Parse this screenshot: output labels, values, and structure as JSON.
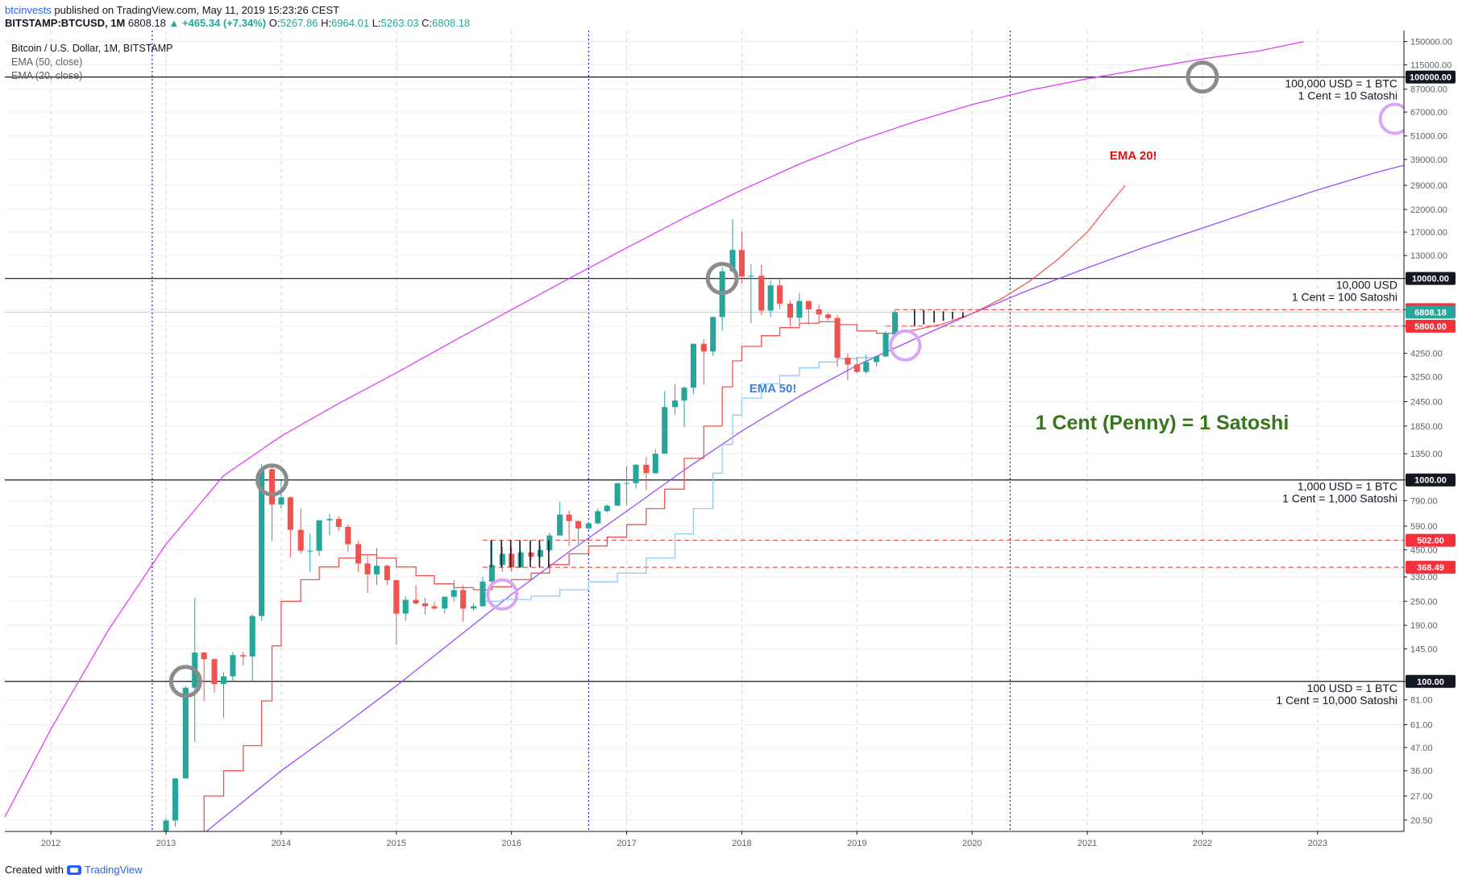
{
  "header": {
    "author": "btcinvests",
    "published": " published on TradingView.com, May 11, 2019 15:23:26 CEST"
  },
  "ohlc": {
    "symbol": "BITSTAMP:BTCUSD, 1M",
    "price": "6808.18",
    "change": "▲ +465.34 (+7.34%)",
    "o_label": "O:",
    "o": "5267.86",
    "h_label": "H:",
    "h": "6964.01",
    "l_label": "L:",
    "l": "5263.03",
    "c_label": "C:",
    "c": "6808.18"
  },
  "legend": {
    "title": "Bitcoin / U.S. Dollar, 1M, BITSTAMP",
    "ema50": "EMA (50, close)",
    "ema20": "EMA (20, close)"
  },
  "footer": {
    "created": "Created with",
    "brand": "TradingView"
  },
  "colors": {
    "up": "#26a69a",
    "down": "#ef5350",
    "ema20": "#ef5350",
    "ema50": "#90caf9",
    "upper_curve": "#e040fb",
    "lower_curve": "#9c4dff",
    "vline": "#1e22d0",
    "annotation_green": "#38761d",
    "ema20_label": "#e01010",
    "ema50_label": "#3d7fd9"
  },
  "chart_data": {
    "type": "candlestick",
    "title": "Bitcoin / U.S. Dollar, 1M, BITSTAMP",
    "scale": "log",
    "ylim": [
      18,
      170000
    ],
    "xlim": [
      2011.6,
      2023.75
    ],
    "x_ticks": [
      "2012",
      "2013",
      "2014",
      "2015",
      "2016",
      "2017",
      "2018",
      "2019",
      "2020",
      "2021",
      "2022",
      "2023"
    ],
    "y_ticks": [
      20.5,
      27,
      36,
      47,
      61,
      81,
      100,
      145,
      190,
      250,
      330,
      450,
      590,
      790,
      1000,
      1350,
      1850,
      2450,
      3250,
      4250,
      5800,
      7000,
      10000,
      13000,
      17000,
      22000,
      29000,
      39000,
      51000,
      67000,
      87000,
      100000,
      115000,
      150000
    ],
    "y_tick_labels": [
      "20.50",
      "27.00",
      "36.00",
      "47.00",
      "61.00",
      "81.00",
      "100.00",
      "145.00",
      "190.00",
      "250.00",
      "330.00",
      "450.00",
      "590.00",
      "790.00",
      "1000.00",
      "1350.00",
      "1850.00",
      "2450.00",
      "3250.00",
      "4250.00",
      "5800.00",
      "7000.00",
      "10000.00",
      "13000.00",
      "17000.00",
      "22000.00",
      "29000.00",
      "39000.00",
      "51000.00",
      "67000.00",
      "87000.00",
      "100000.00",
      "115000.00",
      "150000.00"
    ],
    "candles": [
      {
        "d": 2012.92,
        "o": 13.5,
        "h": 14,
        "l": 12.5,
        "c": 13.5
      },
      {
        "d": 2013.0,
        "o": 13.5,
        "h": 21,
        "l": 13,
        "c": 20.4
      },
      {
        "d": 2013.08,
        "o": 20.4,
        "h": 33,
        "l": 19,
        "c": 33
      },
      {
        "d": 2013.17,
        "o": 33,
        "h": 95,
        "l": 33,
        "c": 93
      },
      {
        "d": 2013.25,
        "o": 93,
        "h": 260,
        "l": 50,
        "c": 139
      },
      {
        "d": 2013.33,
        "o": 139,
        "h": 140,
        "l": 80,
        "c": 129
      },
      {
        "d": 2013.42,
        "o": 129,
        "h": 130,
        "l": 88,
        "c": 97
      },
      {
        "d": 2013.5,
        "o": 97,
        "h": 111,
        "l": 66,
        "c": 106
      },
      {
        "d": 2013.58,
        "o": 106,
        "h": 140,
        "l": 100,
        "c": 135
      },
      {
        "d": 2013.67,
        "o": 135,
        "h": 140,
        "l": 120,
        "c": 133
      },
      {
        "d": 2013.75,
        "o": 133,
        "h": 215,
        "l": 100,
        "c": 211
      },
      {
        "d": 2013.83,
        "o": 211,
        "h": 1200,
        "l": 200,
        "c": 1130
      },
      {
        "d": 2013.92,
        "o": 1130,
        "h": 1165,
        "l": 500,
        "c": 755
      },
      {
        "d": 2014.0,
        "o": 755,
        "h": 1000,
        "l": 720,
        "c": 820
      },
      {
        "d": 2014.08,
        "o": 820,
        "h": 830,
        "l": 410,
        "c": 565
      },
      {
        "d": 2014.17,
        "o": 565,
        "h": 720,
        "l": 430,
        "c": 445
      },
      {
        "d": 2014.25,
        "o": 445,
        "h": 540,
        "l": 350,
        "c": 445
      },
      {
        "d": 2014.33,
        "o": 445,
        "h": 635,
        "l": 420,
        "c": 630
      },
      {
        "d": 2014.42,
        "o": 630,
        "h": 680,
        "l": 530,
        "c": 640
      },
      {
        "d": 2014.5,
        "o": 640,
        "h": 660,
        "l": 560,
        "c": 585
      },
      {
        "d": 2014.58,
        "o": 585,
        "h": 600,
        "l": 440,
        "c": 480
      },
      {
        "d": 2014.67,
        "o": 480,
        "h": 500,
        "l": 350,
        "c": 385
      },
      {
        "d": 2014.75,
        "o": 385,
        "h": 420,
        "l": 275,
        "c": 340
      },
      {
        "d": 2014.83,
        "o": 340,
        "h": 460,
        "l": 300,
        "c": 375
      },
      {
        "d": 2014.92,
        "o": 375,
        "h": 380,
        "l": 300,
        "c": 318
      },
      {
        "d": 2015.0,
        "o": 318,
        "h": 320,
        "l": 152,
        "c": 217
      },
      {
        "d": 2015.08,
        "o": 217,
        "h": 265,
        "l": 200,
        "c": 254
      },
      {
        "d": 2015.17,
        "o": 254,
        "h": 300,
        "l": 240,
        "c": 244
      },
      {
        "d": 2015.25,
        "o": 244,
        "h": 260,
        "l": 215,
        "c": 236
      },
      {
        "d": 2015.33,
        "o": 236,
        "h": 248,
        "l": 228,
        "c": 230
      },
      {
        "d": 2015.42,
        "o": 230,
        "h": 265,
        "l": 218,
        "c": 263
      },
      {
        "d": 2015.5,
        "o": 263,
        "h": 318,
        "l": 250,
        "c": 284
      },
      {
        "d": 2015.58,
        "o": 284,
        "h": 300,
        "l": 198,
        "c": 230
      },
      {
        "d": 2015.67,
        "o": 230,
        "h": 245,
        "l": 225,
        "c": 236
      },
      {
        "d": 2015.75,
        "o": 236,
        "h": 330,
        "l": 235,
        "c": 313
      },
      {
        "d": 2015.83,
        "o": 313,
        "h": 502,
        "l": 305,
        "c": 378
      },
      {
        "d": 2015.92,
        "o": 378,
        "h": 465,
        "l": 350,
        "c": 430
      },
      {
        "d": 2016.0,
        "o": 430,
        "h": 460,
        "l": 350,
        "c": 368
      },
      {
        "d": 2016.08,
        "o": 368,
        "h": 445,
        "l": 365,
        "c": 437
      },
      {
        "d": 2016.17,
        "o": 437,
        "h": 440,
        "l": 400,
        "c": 416
      },
      {
        "d": 2016.25,
        "o": 416,
        "h": 470,
        "l": 412,
        "c": 448
      },
      {
        "d": 2016.33,
        "o": 448,
        "h": 548,
        "l": 440,
        "c": 530
      },
      {
        "d": 2016.42,
        "o": 530,
        "h": 780,
        "l": 530,
        "c": 673
      },
      {
        "d": 2016.5,
        "o": 673,
        "h": 705,
        "l": 470,
        "c": 625
      },
      {
        "d": 2016.58,
        "o": 625,
        "h": 630,
        "l": 480,
        "c": 575
      },
      {
        "d": 2016.67,
        "o": 575,
        "h": 615,
        "l": 565,
        "c": 609
      },
      {
        "d": 2016.75,
        "o": 609,
        "h": 720,
        "l": 600,
        "c": 700
      },
      {
        "d": 2016.83,
        "o": 700,
        "h": 755,
        "l": 690,
        "c": 745
      },
      {
        "d": 2016.92,
        "o": 745,
        "h": 970,
        "l": 745,
        "c": 963
      },
      {
        "d": 2017.0,
        "o": 963,
        "h": 1170,
        "l": 750,
        "c": 965
      },
      {
        "d": 2017.08,
        "o": 965,
        "h": 1200,
        "l": 910,
        "c": 1190
      },
      {
        "d": 2017.17,
        "o": 1190,
        "h": 1300,
        "l": 890,
        "c": 1080
      },
      {
        "d": 2017.25,
        "o": 1080,
        "h": 1420,
        "l": 1075,
        "c": 1350
      },
      {
        "d": 2017.33,
        "o": 1350,
        "h": 2760,
        "l": 1345,
        "c": 2300
      },
      {
        "d": 2017.42,
        "o": 2300,
        "h": 2990,
        "l": 2120,
        "c": 2480
      },
      {
        "d": 2017.5,
        "o": 2480,
        "h": 2920,
        "l": 1830,
        "c": 2870
      },
      {
        "d": 2017.58,
        "o": 2870,
        "h": 4750,
        "l": 2670,
        "c": 4740
      },
      {
        "d": 2017.67,
        "o": 4740,
        "h": 4990,
        "l": 2970,
        "c": 4340
      },
      {
        "d": 2017.75,
        "o": 4340,
        "h": 6470,
        "l": 4130,
        "c": 6440
      },
      {
        "d": 2017.83,
        "o": 6440,
        "h": 11400,
        "l": 5500,
        "c": 10860
      },
      {
        "d": 2017.92,
        "o": 10860,
        "h": 19666,
        "l": 10720,
        "c": 13860
      },
      {
        "d": 2018.0,
        "o": 13860,
        "h": 17170,
        "l": 9400,
        "c": 10230
      },
      {
        "d": 2018.08,
        "o": 10230,
        "h": 11790,
        "l": 6000,
        "c": 10320
      },
      {
        "d": 2018.17,
        "o": 10320,
        "h": 11700,
        "l": 6600,
        "c": 6930
      },
      {
        "d": 2018.25,
        "o": 6930,
        "h": 9760,
        "l": 6430,
        "c": 9240
      },
      {
        "d": 2018.33,
        "o": 9240,
        "h": 9990,
        "l": 7070,
        "c": 7500
      },
      {
        "d": 2018.42,
        "o": 7500,
        "h": 7770,
        "l": 5780,
        "c": 6390
      },
      {
        "d": 2018.5,
        "o": 6390,
        "h": 8500,
        "l": 6070,
        "c": 7730
      },
      {
        "d": 2018.58,
        "o": 7730,
        "h": 7750,
        "l": 5880,
        "c": 7030
      },
      {
        "d": 2018.67,
        "o": 7030,
        "h": 7410,
        "l": 6110,
        "c": 6630
      },
      {
        "d": 2018.75,
        "o": 6630,
        "h": 6750,
        "l": 6200,
        "c": 6370
      },
      {
        "d": 2018.83,
        "o": 6370,
        "h": 6590,
        "l": 3650,
        "c": 4040
      },
      {
        "d": 2018.92,
        "o": 4040,
        "h": 4240,
        "l": 3120,
        "c": 3740
      },
      {
        "d": 2019.0,
        "o": 3740,
        "h": 4070,
        "l": 3400,
        "c": 3440
      },
      {
        "d": 2019.08,
        "o": 3440,
        "h": 4200,
        "l": 3350,
        "c": 3850
      },
      {
        "d": 2019.17,
        "o": 3850,
        "h": 4150,
        "l": 3660,
        "c": 4100
      },
      {
        "d": 2019.25,
        "o": 4100,
        "h": 5470,
        "l": 4090,
        "c": 5320
      },
      {
        "d": 2019.33,
        "o": 5267.86,
        "h": 6964.01,
        "l": 5263.03,
        "c": 6808.18
      }
    ],
    "ema20": [
      [
        2013.0,
        14
      ],
      [
        2013.17,
        18
      ],
      [
        2013.33,
        27
      ],
      [
        2013.5,
        36
      ],
      [
        2013.67,
        48
      ],
      [
        2013.83,
        80
      ],
      [
        2013.92,
        150
      ],
      [
        2014.0,
        250
      ],
      [
        2014.17,
        320
      ],
      [
        2014.33,
        370
      ],
      [
        2014.5,
        410
      ],
      [
        2014.67,
        425
      ],
      [
        2014.83,
        410
      ],
      [
        2015.0,
        370
      ],
      [
        2015.17,
        335
      ],
      [
        2015.33,
        305
      ],
      [
        2015.5,
        292
      ],
      [
        2015.67,
        285
      ],
      [
        2015.83,
        295
      ],
      [
        2016.0,
        320
      ],
      [
        2016.17,
        345
      ],
      [
        2016.33,
        380
      ],
      [
        2016.5,
        430
      ],
      [
        2016.67,
        470
      ],
      [
        2016.83,
        520
      ],
      [
        2017.0,
        600
      ],
      [
        2017.17,
        720
      ],
      [
        2017.33,
        900
      ],
      [
        2017.5,
        1280
      ],
      [
        2017.67,
        1850
      ],
      [
        2017.83,
        2900
      ],
      [
        2017.92,
        3900
      ],
      [
        2018.0,
        4600
      ],
      [
        2018.17,
        5200
      ],
      [
        2018.33,
        5700
      ],
      [
        2018.5,
        6000
      ],
      [
        2018.67,
        6100
      ],
      [
        2018.83,
        5900
      ],
      [
        2019.0,
        5500
      ],
      [
        2019.17,
        5350
      ],
      [
        2019.33,
        5420
      ],
      [
        2019.5,
        5550
      ],
      [
        2019.75,
        5950
      ],
      [
        2020.0,
        6700
      ],
      [
        2020.25,
        7900
      ],
      [
        2020.5,
        9700
      ],
      [
        2020.75,
        12500
      ],
      [
        2021.0,
        17000
      ],
      [
        2021.17,
        22500
      ],
      [
        2021.33,
        29000
      ]
    ],
    "ema50": [
      [
        2015.75,
        250
      ],
      [
        2015.92,
        255
      ],
      [
        2016.17,
        265
      ],
      [
        2016.42,
        285
      ],
      [
        2016.67,
        312
      ],
      [
        2016.92,
        345
      ],
      [
        2017.17,
        410
      ],
      [
        2017.42,
        540
      ],
      [
        2017.58,
        720
      ],
      [
        2017.75,
        1080
      ],
      [
        2017.83,
        1500
      ],
      [
        2017.92,
        2100
      ],
      [
        2018.0,
        2550
      ],
      [
        2018.17,
        3000
      ],
      [
        2018.33,
        3300
      ],
      [
        2018.5,
        3600
      ],
      [
        2018.67,
        3850
      ],
      [
        2018.83,
        4000
      ],
      [
        2019.0,
        4050
      ],
      [
        2019.17,
        4100
      ]
    ],
    "upper_curve": [
      [
        2011.6,
        21.2
      ],
      [
        2012.0,
        58
      ],
      [
        2012.5,
        180
      ],
      [
        2013.0,
        480
      ],
      [
        2013.5,
        1050
      ],
      [
        2014.0,
        1650
      ],
      [
        2014.5,
        2400
      ],
      [
        2015.0,
        3400
      ],
      [
        2015.5,
        4900
      ],
      [
        2016.0,
        7000
      ],
      [
        2016.5,
        10000
      ],
      [
        2017.0,
        14200
      ],
      [
        2017.5,
        20000
      ],
      [
        2018.0,
        27500
      ],
      [
        2018.5,
        37000
      ],
      [
        2019.0,
        48000
      ],
      [
        2019.5,
        60000
      ],
      [
        2020.0,
        73000
      ],
      [
        2020.5,
        86000
      ],
      [
        2021.0,
        98000
      ],
      [
        2021.5,
        110000
      ],
      [
        2022.0,
        123000
      ],
      [
        2022.5,
        135000
      ],
      [
        2022.88,
        150000
      ]
    ],
    "lower_curve": [
      [
        2013.35,
        18
      ],
      [
        2014.0,
        36
      ],
      [
        2014.5,
        58
      ],
      [
        2015.0,
        95
      ],
      [
        2015.5,
        160
      ],
      [
        2016.0,
        270
      ],
      [
        2016.5,
        440
      ],
      [
        2017.0,
        700
      ],
      [
        2017.5,
        1120
      ],
      [
        2018.0,
        1750
      ],
      [
        2018.5,
        2600
      ],
      [
        2019.0,
        3700
      ],
      [
        2019.5,
        5000
      ],
      [
        2020.0,
        6700
      ],
      [
        2020.5,
        8800
      ],
      [
        2021.0,
        11300
      ],
      [
        2021.5,
        14300
      ],
      [
        2022.0,
        17800
      ],
      [
        2022.5,
        22200
      ],
      [
        2023.0,
        27500
      ],
      [
        2023.5,
        33500
      ],
      [
        2023.75,
        36500
      ]
    ],
    "h_lines": [
      {
        "value": 100000,
        "label": "100000.00"
      },
      {
        "value": 10000,
        "label": "10000.00"
      },
      {
        "value": 1000,
        "label": "1000.00"
      },
      {
        "value": 100,
        "label": "100.00"
      }
    ],
    "dashed_levels": [
      {
        "value": 7000,
        "label": "7000.00"
      },
      {
        "value": 5800,
        "label": "5800.00"
      },
      {
        "value": 502,
        "label": "502.00"
      },
      {
        "value": 368.49,
        "label": "368.49"
      }
    ],
    "current_price": {
      "value": 6808.18,
      "label": "6808.18"
    },
    "v_lines": [
      2012.88,
      2016.67,
      2020.33
    ],
    "black_circles": [
      [
        2013.17,
        100
      ],
      [
        2013.92,
        1000
      ],
      [
        2017.83,
        10000
      ],
      [
        2022.0,
        100000
      ]
    ],
    "purple_circles": [
      [
        2015.92,
        270
      ],
      [
        2019.42,
        4650
      ],
      [
        2023.67,
        62000
      ]
    ],
    "level_texts": [
      {
        "value": 100000,
        "line1": "100,000 USD = 1 BTC",
        "line2": "1 Cent = 10 Satoshi"
      },
      {
        "value": 10000,
        "line1": "10,000 USD",
        "line2": "1 Cent = 100 Satoshi"
      },
      {
        "value": 1000,
        "line1": "1,000 USD = 1 BTC",
        "line2": "1 Cent = 1,000 Satoshi"
      },
      {
        "value": 100,
        "line1": "100 USD = 1 BTC",
        "line2": "1 Cent = 10,000 Satoshi"
      }
    ],
    "annotations": {
      "ema20_label": "EMA 20!",
      "ema50_label": "EMA 50!",
      "satoshi_label": "1 Cent (Penny) = 1 Satoshi"
    },
    "projection_bars": [
      2019.5,
      2019.58,
      2019.67,
      2019.75,
      2019.83,
      2019.92
    ],
    "breakout_bars": [
      2015.83,
      2015.92,
      2016.0,
      2016.08,
      2016.17,
      2016.25,
      2016.33
    ]
  }
}
